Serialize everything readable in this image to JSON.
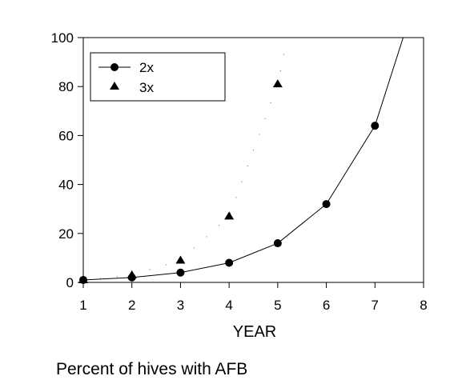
{
  "chart_data": {
    "type": "line",
    "xlabel": "YEAR",
    "ylabel": "",
    "caption": "Percent of hives with AFB",
    "xlim": [
      1,
      8
    ],
    "ylim": [
      0,
      100
    ],
    "x_ticks": [
      "1",
      "2",
      "3",
      "4",
      "5",
      "6",
      "7",
      "8"
    ],
    "y_ticks": [
      "0",
      "20",
      "40",
      "60",
      "80",
      "100"
    ],
    "grid": false,
    "legend_position": "top-left",
    "series": [
      {
        "name": "2x",
        "marker": "circle",
        "line": "solid",
        "points": [
          [
            1,
            1
          ],
          [
            2,
            2
          ],
          [
            3,
            4
          ],
          [
            4,
            8
          ],
          [
            5,
            16
          ],
          [
            6,
            32
          ],
          [
            7,
            64
          ]
        ],
        "curve": [
          [
            1,
            1
          ],
          [
            2,
            2
          ],
          [
            3,
            4
          ],
          [
            4,
            8
          ],
          [
            5,
            16
          ],
          [
            6,
            32
          ],
          [
            7,
            64
          ],
          [
            7.58,
            100
          ]
        ]
      },
      {
        "name": "3x",
        "marker": "triangle",
        "line": "dotted",
        "points": [
          [
            1,
            1
          ],
          [
            2,
            3
          ],
          [
            3,
            9
          ],
          [
            4,
            27
          ],
          [
            5,
            81
          ]
        ],
        "curve": [
          [
            1,
            1
          ],
          [
            2,
            3
          ],
          [
            3,
            9
          ],
          [
            4,
            27
          ],
          [
            5,
            81
          ],
          [
            5.2,
            100
          ]
        ]
      }
    ]
  }
}
